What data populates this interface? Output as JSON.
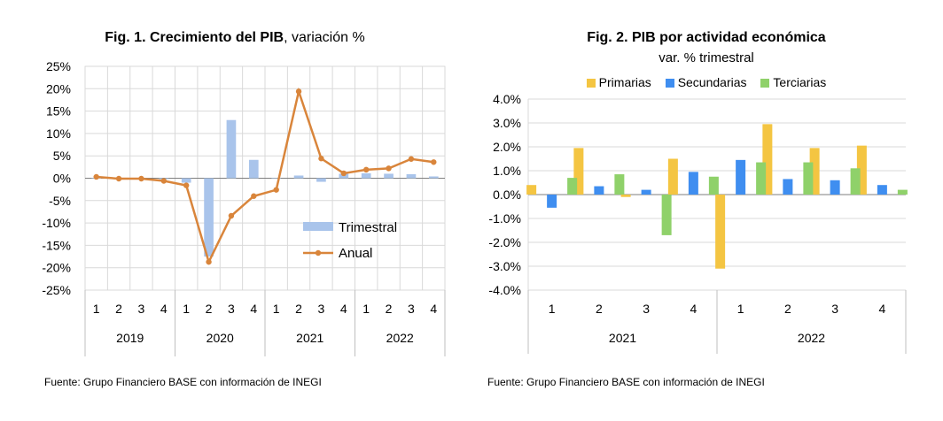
{
  "chart_data": [
    {
      "type": "bar+line",
      "title_bold": "Fig. 1. Crecimiento del PIB",
      "title_rest": ", variación %",
      "source": "Fuente: Grupo Financiero BASE con información de INEGI",
      "ylim": [
        -25,
        25
      ],
      "y_ticks": [
        "25%",
        "20%",
        "15%",
        "10%",
        "5%",
        "0%",
        "-5%",
        "-10%",
        "-15%",
        "-20%",
        "-25%"
      ],
      "y_tick_values": [
        25,
        20,
        15,
        10,
        5,
        0,
        -5,
        -10,
        -15,
        -20,
        -25
      ],
      "quarters": [
        "1",
        "2",
        "3",
        "4",
        "1",
        "2",
        "3",
        "4",
        "1",
        "2",
        "3",
        "4",
        "1",
        "2",
        "3",
        "4"
      ],
      "years": [
        "2019",
        "2020",
        "2021",
        "2022"
      ],
      "legend_position": "center-right",
      "series": [
        {
          "name": "Trimestral",
          "kind": "bar",
          "color": "#a9c4eb",
          "values": [
            0.0,
            -0.1,
            -0.1,
            -0.2,
            -1.0,
            -17.5,
            13.0,
            4.1,
            0.1,
            0.6,
            -0.8,
            1.0,
            1.1,
            1.0,
            0.9,
            0.4
          ]
        },
        {
          "name": "Anual",
          "kind": "line",
          "color": "#d9853b",
          "values": [
            0.3,
            -0.1,
            -0.1,
            -0.6,
            -1.6,
            -18.7,
            -8.4,
            -4.0,
            -2.6,
            19.4,
            4.4,
            1.1,
            1.9,
            2.2,
            4.3,
            3.6
          ]
        }
      ]
    },
    {
      "type": "bar",
      "title": "Fig. 2. PIB por actividad económica",
      "subtitle": "var. % trimestral",
      "source": "Fuente: Grupo Financiero BASE con información de INEGI",
      "ylim": [
        -4.0,
        4.0
      ],
      "y_ticks": [
        "4.0%",
        "3.0%",
        "2.0%",
        "1.0%",
        "0.0%",
        "-1.0%",
        "-2.0%",
        "-3.0%",
        "-4.0%"
      ],
      "y_tick_values": [
        4,
        3,
        2,
        1,
        0,
        -1,
        -2,
        -3,
        -4
      ],
      "quarters": [
        "1",
        "2",
        "3",
        "4",
        "1",
        "2",
        "3",
        "4"
      ],
      "years": [
        "2021",
        "2022"
      ],
      "legend_position": "top",
      "series": [
        {
          "name": "Primarias",
          "color": "#f4c542",
          "values": [
            0.4,
            1.95,
            -0.1,
            1.5,
            -3.1,
            2.95,
            1.95,
            2.05
          ]
        },
        {
          "name": "Secundarias",
          "color": "#3f8ef0",
          "values": [
            -0.55,
            0.35,
            0.2,
            0.95,
            1.45,
            0.65,
            0.6,
            0.4
          ]
        },
        {
          "name": "Terciarias",
          "color": "#8fd16a",
          "values": [
            0.7,
            0.85,
            -1.7,
            0.75,
            1.35,
            1.35,
            1.1,
            0.2
          ]
        }
      ]
    }
  ]
}
